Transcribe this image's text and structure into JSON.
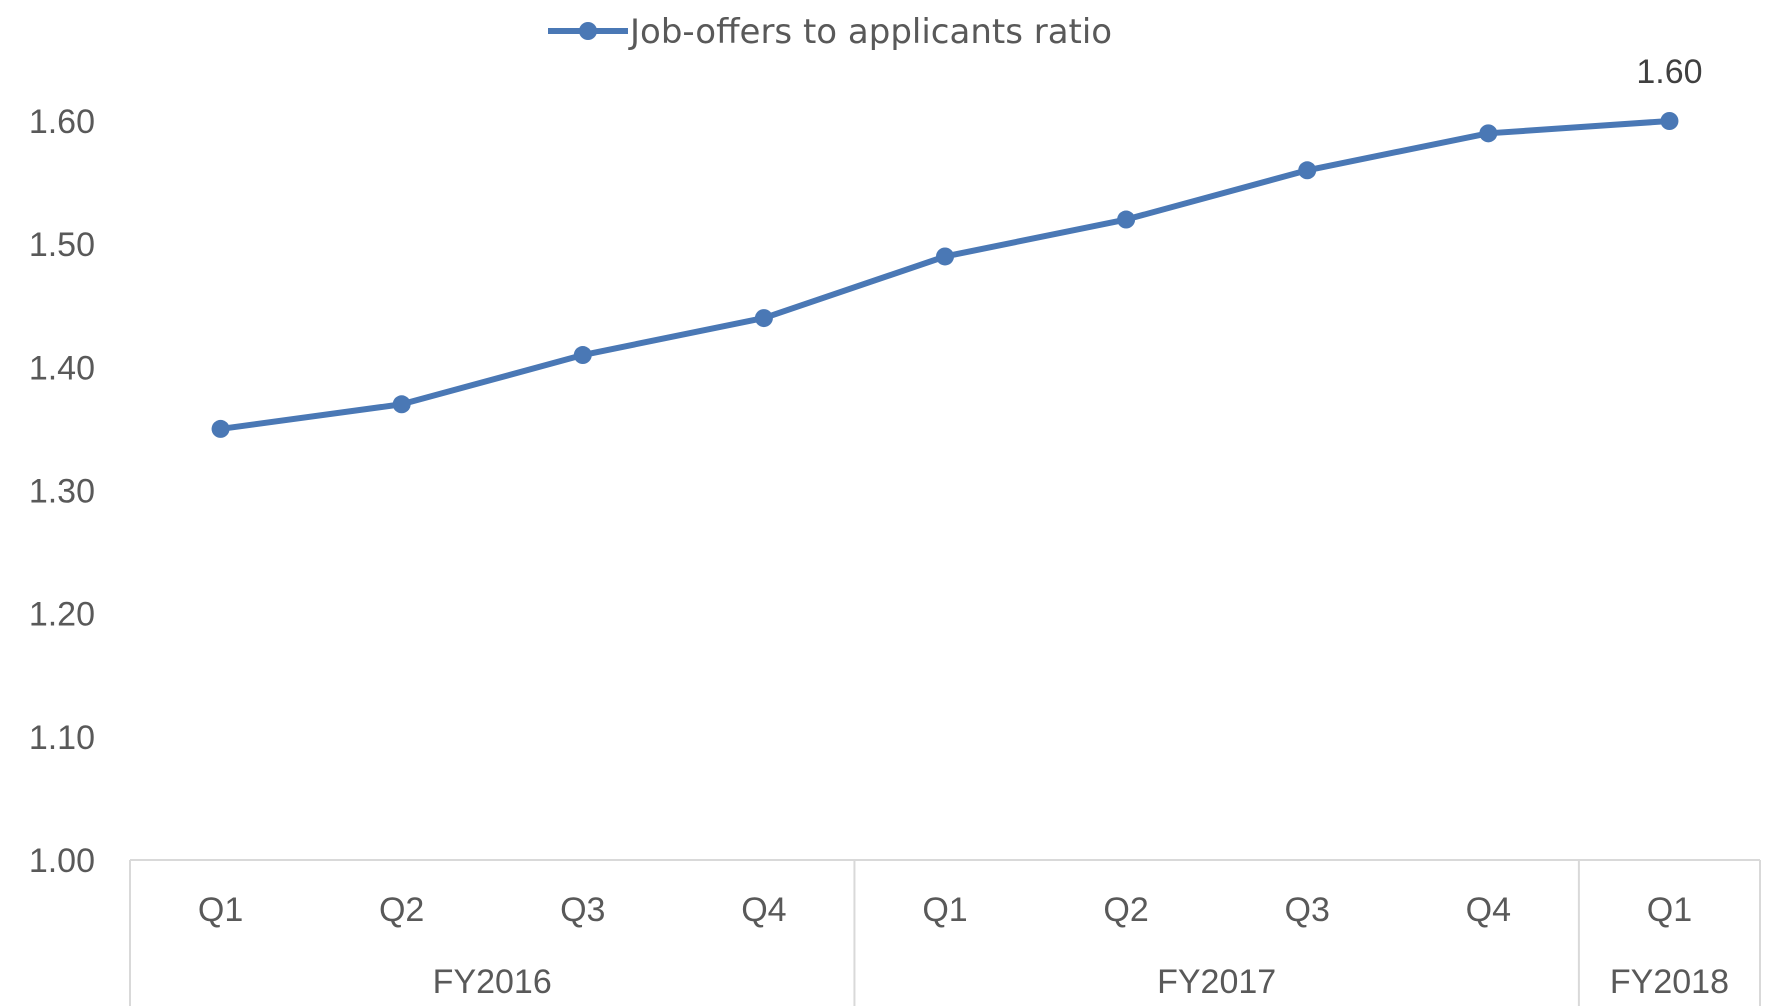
{
  "chart_data": {
    "type": "line",
    "title": "",
    "xlabel": "",
    "ylabel": "",
    "ylim": [
      1.0,
      1.6
    ],
    "yticks": [
      "1.00",
      "1.10",
      "1.20",
      "1.30",
      "1.40",
      "1.50",
      "1.60"
    ],
    "grid": false,
    "legend_position": "top-center",
    "categories": [
      "Q1",
      "Q2",
      "Q3",
      "Q4",
      "Q1",
      "Q2",
      "Q3",
      "Q4",
      "Q1"
    ],
    "groups": [
      {
        "label": "FY2016",
        "count": 4
      },
      {
        "label": "FY2017",
        "count": 4
      },
      {
        "label": "FY2018",
        "count": 1
      }
    ],
    "series": [
      {
        "name": "Job-offers to applicants ratio",
        "color": "#4a78b5",
        "values": [
          1.35,
          1.37,
          1.41,
          1.44,
          1.49,
          1.52,
          1.56,
          1.59,
          1.6
        ]
      }
    ],
    "data_labels": [
      {
        "index": 8,
        "text": "1.60"
      }
    ]
  }
}
